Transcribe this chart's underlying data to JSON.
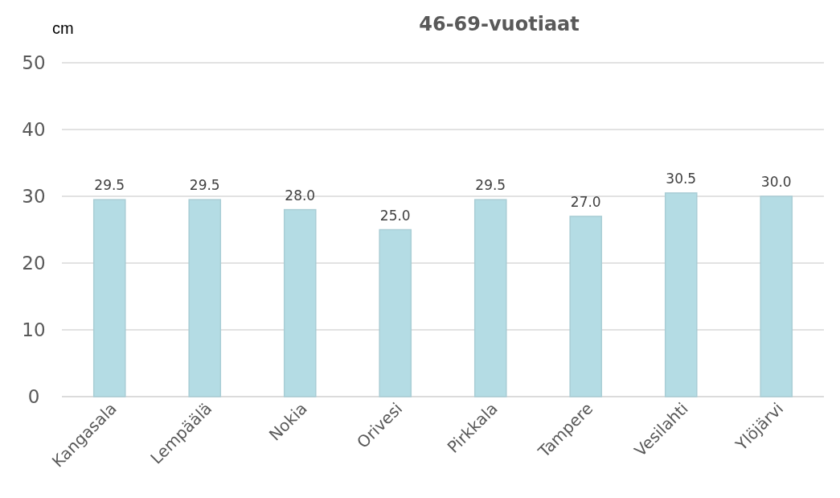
{
  "chart_data": {
    "type": "bar",
    "title": "46-69-vuotiaat",
    "ylabel": "cm",
    "categories": [
      "Kangasala",
      "Lempäälä",
      "Nokia",
      "Orivesi",
      "Pirkkala",
      "Tampere",
      "Vesilahti",
      "Ylöjärvi"
    ],
    "values": [
      29.5,
      29.5,
      28.0,
      25.0,
      29.5,
      27.0,
      30.5,
      30.0
    ],
    "value_labels": [
      "29.5",
      "29.5",
      "28.0",
      "25.0",
      "29.5",
      "27.0",
      "30.5",
      "30.0"
    ],
    "color": "#b4dce4",
    "ylim": [
      0,
      50
    ],
    "yticks": [
      0,
      10,
      20,
      30,
      40,
      50
    ],
    "grid": "y"
  }
}
